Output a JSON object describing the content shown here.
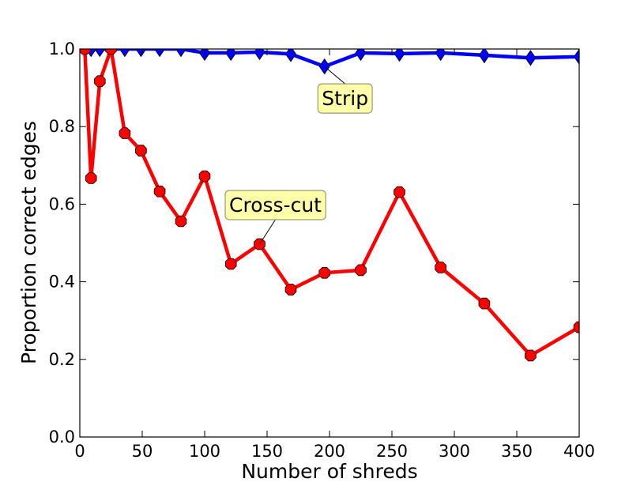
{
  "chart_data": {
    "type": "line",
    "title": "",
    "xlabel": "Number of shreds",
    "ylabel": "Proportion correct edges",
    "xlim": [
      0,
      400
    ],
    "ylim": [
      0.0,
      1.0
    ],
    "xticks": [
      0,
      50,
      100,
      150,
      200,
      250,
      300,
      350,
      400
    ],
    "yticks": [
      0.0,
      0.2,
      0.4,
      0.6,
      0.8,
      1.0
    ],
    "xtick_labels": [
      "0",
      "50",
      "100",
      "150",
      "200",
      "250",
      "300",
      "350",
      "400"
    ],
    "ytick_labels": [
      "0.0",
      "0.2",
      "0.4",
      "0.6",
      "0.8",
      "1.0"
    ],
    "grid": false,
    "legend": "none",
    "series": [
      {
        "label": "Strip",
        "color": "#0000ff",
        "marker": "diamond",
        "x": [
          4,
          9,
          16,
          25,
          36,
          49,
          64,
          81,
          100,
          121,
          144,
          169,
          196,
          225,
          256,
          289,
          324,
          361,
          400
        ],
        "y": [
          1.0,
          1.0,
          1.0,
          1.0,
          1.0,
          1.0,
          1.0,
          1.0,
          0.99,
          0.99,
          0.992,
          0.987,
          0.955,
          0.99,
          0.988,
          0.99,
          0.984,
          0.977,
          0.98
        ]
      },
      {
        "label": "Cross-cut",
        "color": "#ff0000",
        "marker": "octagon",
        "x": [
          4,
          9,
          16,
          25,
          36,
          49,
          64,
          81,
          100,
          121,
          144,
          169,
          196,
          225,
          256,
          289,
          324,
          361,
          400
        ],
        "y": [
          1.0,
          0.667,
          0.917,
          1.0,
          0.783,
          0.738,
          0.633,
          0.556,
          0.672,
          0.446,
          0.497,
          0.38,
          0.423,
          0.43,
          0.631,
          0.437,
          0.344,
          0.21,
          0.283
        ]
      }
    ],
    "annotations": [
      {
        "text": "Strip",
        "series": 0,
        "point_x": 196,
        "point_y": 0.955,
        "box_color": "#ffffaa"
      },
      {
        "text": "Cross-cut",
        "series": 1,
        "point_x": 144,
        "point_y": 0.497,
        "box_color": "#ffffaa"
      }
    ]
  }
}
